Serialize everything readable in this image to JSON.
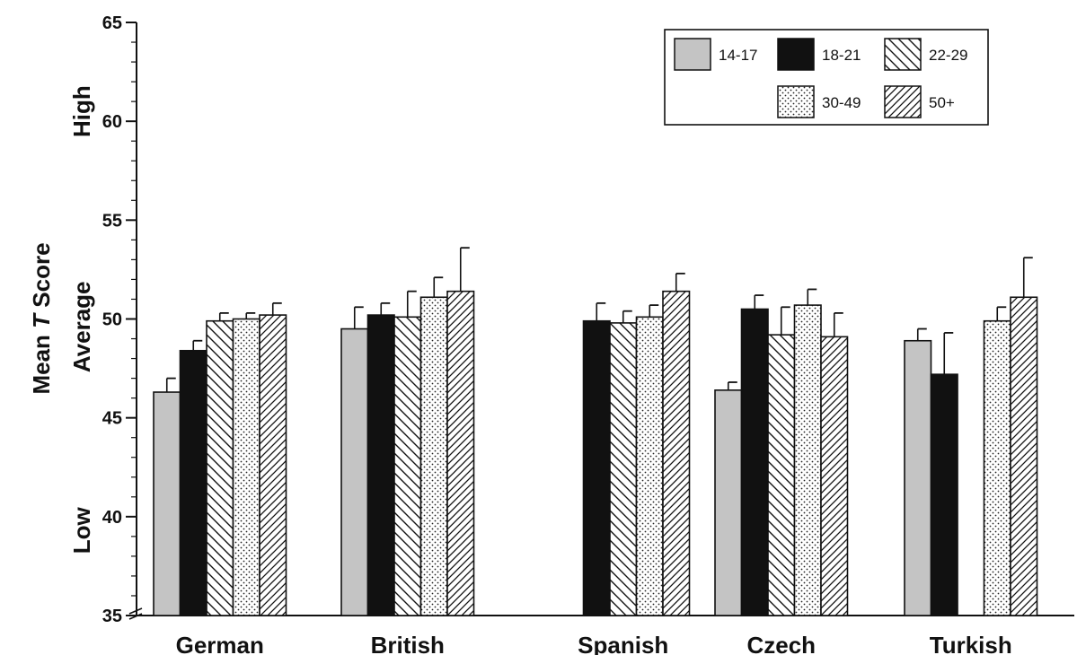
{
  "chart_data": {
    "type": "bar",
    "ylabel_prefix": "Mean",
    "ylabel_italic": "T",
    "ylabel_suffix": "Score",
    "ylim": [
      35,
      65
    ],
    "yticks": [
      35,
      40,
      45,
      50,
      55,
      60,
      65
    ],
    "band_labels": [
      "Low",
      "Average",
      "High"
    ],
    "categories": [
      "German",
      "British",
      "Spanish",
      "Czech",
      "Turkish"
    ],
    "series": [
      {
        "name": "14-17",
        "fill": "gray",
        "values": [
          46.3,
          49.5,
          null,
          46.4,
          48.9
        ],
        "errors": [
          0.7,
          1.1,
          null,
          0.4,
          0.6
        ]
      },
      {
        "name": "18-21",
        "fill": "black",
        "values": [
          48.4,
          50.2,
          49.9,
          50.5,
          47.2
        ],
        "errors": [
          0.5,
          0.6,
          0.9,
          0.7,
          2.1
        ]
      },
      {
        "name": "22-29",
        "fill": "backhatch",
        "values": [
          49.9,
          50.1,
          49.8,
          49.2,
          null
        ],
        "errors": [
          0.4,
          1.3,
          0.6,
          1.4,
          null
        ]
      },
      {
        "name": "30-49",
        "fill": "dots",
        "values": [
          50.0,
          51.1,
          50.1,
          50.7,
          49.9
        ],
        "errors": [
          0.3,
          1.0,
          0.6,
          0.8,
          0.7
        ]
      },
      {
        "name": "50+",
        "fill": "hatch",
        "values": [
          50.2,
          51.4,
          51.4,
          49.1,
          51.1
        ],
        "errors": [
          0.6,
          2.2,
          0.9,
          1.2,
          2.0
        ]
      }
    ],
    "legend_position": "top-right",
    "grid": false
  }
}
